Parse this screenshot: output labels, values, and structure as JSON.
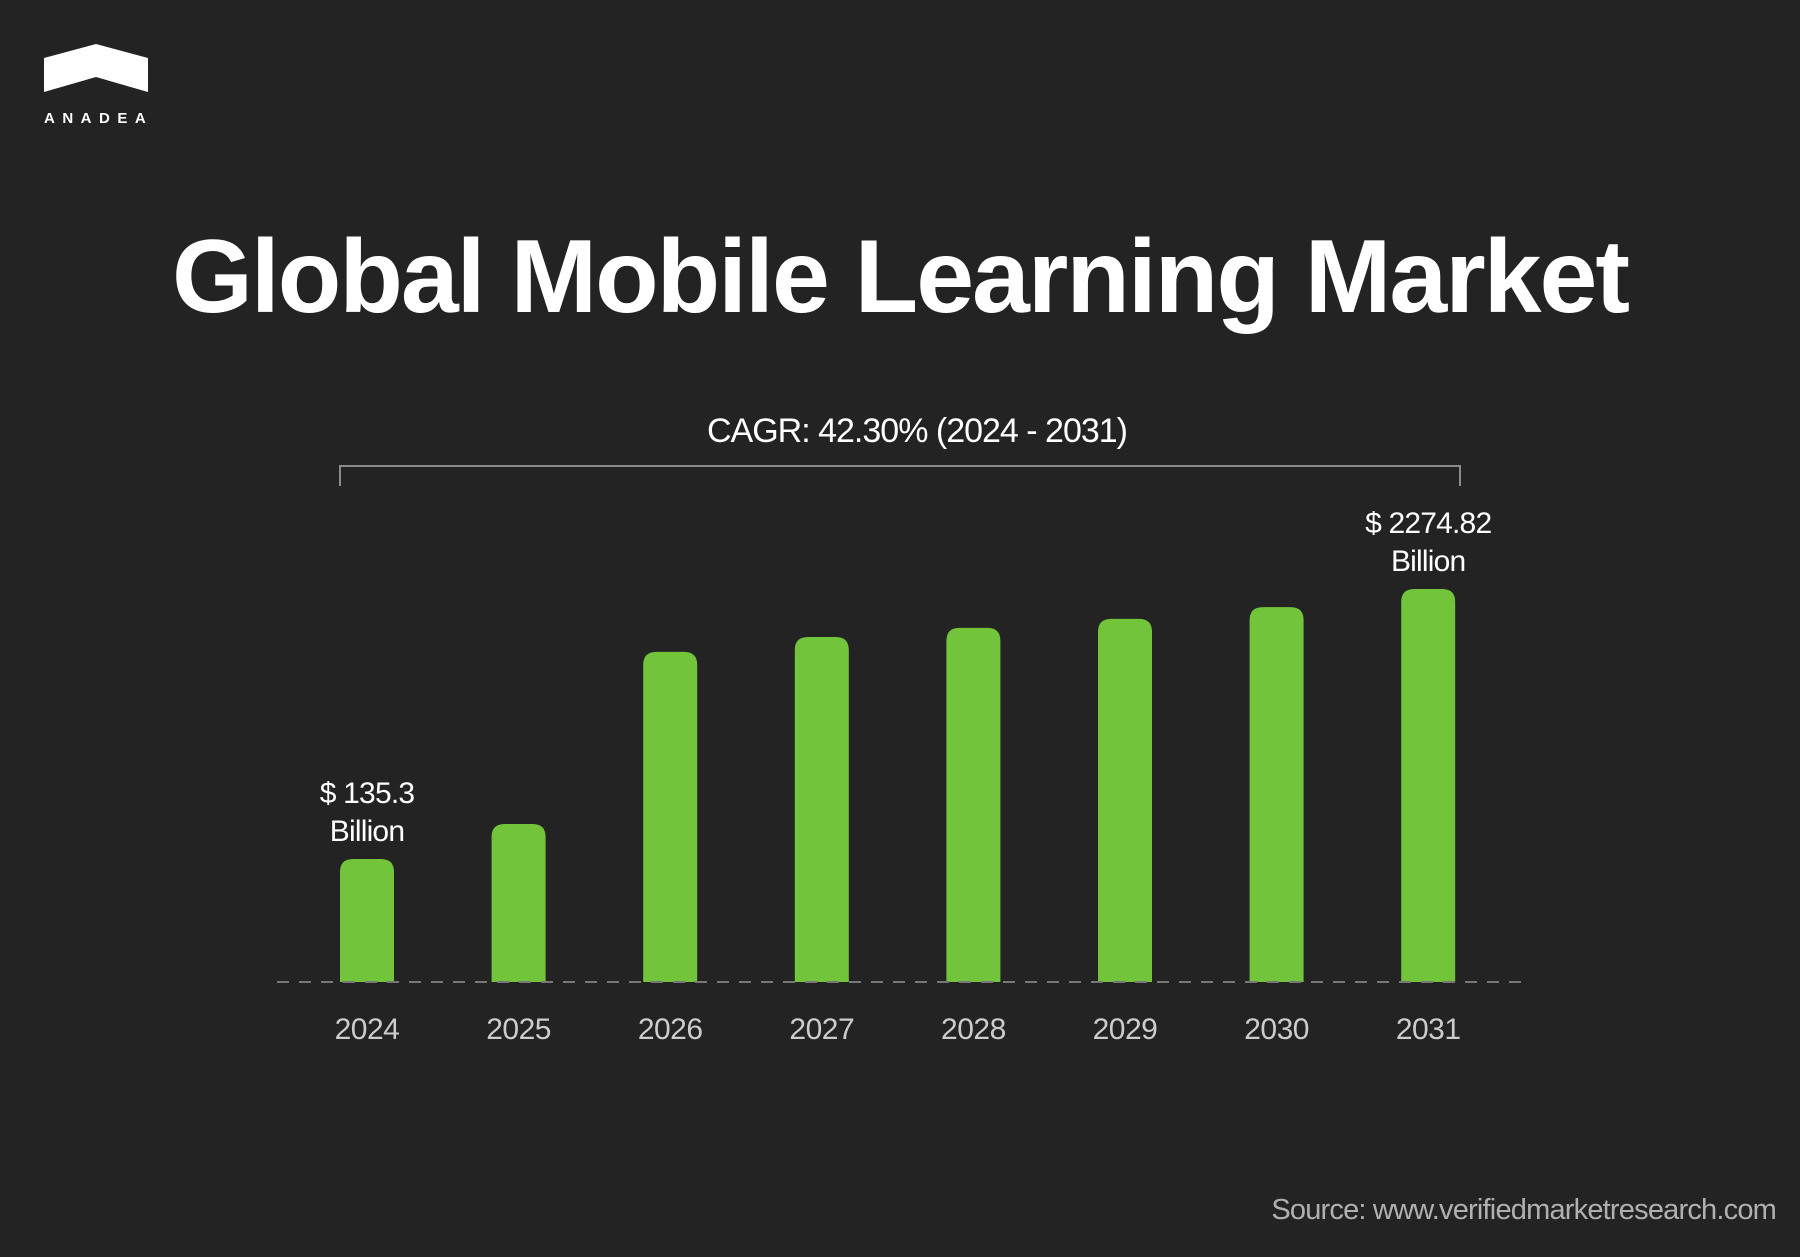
{
  "brand": {
    "logo_text": "ANADEA"
  },
  "title": "Global Mobile Learning Market",
  "cagr_label": "CAGR: 42.30% (2024 - 2031)",
  "source": "Source: www.verifiedmarketresearch.com",
  "colors": {
    "background": "#232323",
    "bar": "#72c43a",
    "text": "#ffffff",
    "axis_label": "#cccccc"
  },
  "chart_data": {
    "type": "bar",
    "title": "Global Mobile Learning Market",
    "categories": [
      "2024",
      "2025",
      "2026",
      "2027",
      "2028",
      "2029",
      "2030",
      "2031"
    ],
    "values": [
      135.3,
      null,
      null,
      null,
      null,
      null,
      null,
      2274.82
    ],
    "unit": "$ Billion",
    "relative_bar_levels": [
      0.313,
      0.402,
      0.84,
      0.878,
      0.901,
      0.924,
      0.954,
      1.0
    ],
    "data_labels": [
      {
        "category": "2024",
        "lines": [
          "$ 135.3",
          "Billion"
        ]
      },
      {
        "category": "2031",
        "lines": [
          "$ 2274.82",
          "Billion"
        ]
      }
    ],
    "annotation": "CAGR: 42.30% (2024 - 2031)",
    "xlabel": "",
    "ylabel": "",
    "grid": false,
    "baseline": "dashed"
  }
}
